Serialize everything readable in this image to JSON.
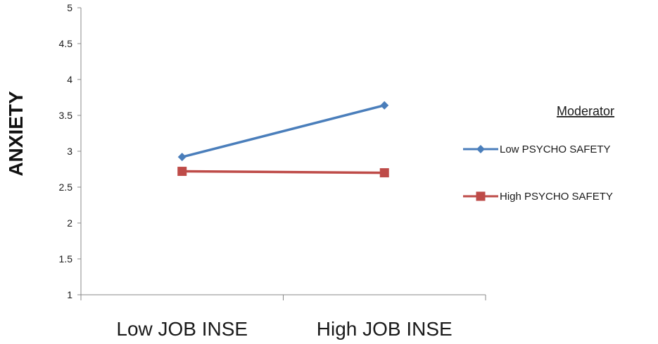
{
  "chart_data": {
    "type": "line",
    "title": "",
    "xlabel": "",
    "ylabel": "ANXIETY",
    "categories": [
      "Low JOB INSE",
      "High JOB INSE"
    ],
    "ylim": [
      1,
      5
    ],
    "yticks": [
      "1",
      "1.5",
      "2",
      "2.5",
      "3",
      "3.5",
      "4",
      "4.5",
      "5"
    ],
    "grid": false,
    "legend": {
      "title": "Moderator",
      "position": "right"
    },
    "series": [
      {
        "name": "Low PSYCHO SAFETY",
        "values": [
          2.92,
          3.64
        ],
        "color": "#4a7ebb",
        "marker": "diamond"
      },
      {
        "name": "High PSYCHO SAFETY",
        "values": [
          2.72,
          2.7
        ],
        "color": "#be4b48",
        "marker": "square"
      }
    ]
  }
}
